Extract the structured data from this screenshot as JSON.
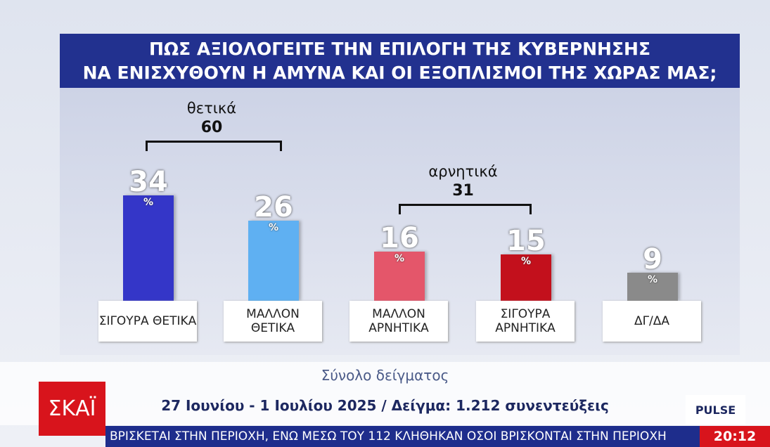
{
  "chart_data": {
    "type": "bar",
    "title": [
      "ΠΩΣ ΑΞΙΟΛΟΓΕΙΤΕ ΤΗΝ ΕΠΙΛΟΓΗ ΤΗΣ ΚΥΒΕΡΝΗΣΗΣ",
      "ΝΑ ΕΝΙΣΧΥΘΟΥΝ Η ΑΜΥΝΑ ΚΑΙ ΟΙ ΕΞΟΠΛΙΣΜΟΙ ΤΗΣ ΧΩΡΑΣ ΜΑΣ;"
    ],
    "categories": [
      "ΣΙΓΟΥΡΑ ΘΕΤΙΚΑ",
      "ΜΑΛΛΟΝ ΘΕΤΙΚΑ",
      "ΜΑΛΛΟΝ ΑΡΝΗΤΙΚΑ",
      "ΣΙΓΟΥΡΑ ΑΡΝΗΤΙΚΑ",
      "ΔΓ/ΔΑ"
    ],
    "values": [
      34,
      26,
      16,
      15,
      9
    ],
    "value_unit": "%",
    "colors": [
      "#3436c8",
      "#5fb0f2",
      "#e4566a",
      "#c3101c",
      "#8a8a8a"
    ],
    "groups": [
      {
        "label": "θετικά",
        "total": 60
      },
      {
        "label": "αρνητικά",
        "total": 31
      }
    ],
    "footer": {
      "subtitle": "Σύνολο δείγματος",
      "sample": "27 Ιουνίου - 1 Ιουλίου 2025 / Δείγμα: 1.212 συνεντεύξεις"
    }
  },
  "broadcast": {
    "channel": "ΣΚΑΪ",
    "pollster": "PULSE",
    "ticker": "ΒΡΙΣΚΕΤΑΙ ΣΤΗΝ ΠΕΡΙΟΧΗ, ΕΝΩ ΜΕΣΩ ΤΟΥ 112 ΚΛΗΘΗΚΑΝ ΟΣΟΙ ΒΡΙΣΚΟΝΤΑΙ ΣΤΗΝ ΠΕΡΙΟΧΗ",
    "time": "20:12"
  }
}
